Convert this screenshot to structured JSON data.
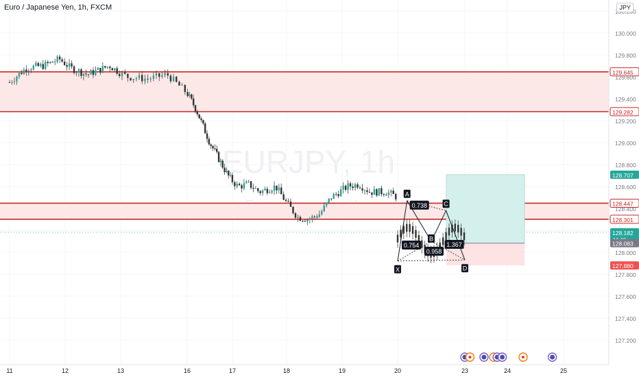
{
  "header": {
    "title": "Euro / Japanese Yen, 1h, FXCM",
    "currency_button": "JPY"
  },
  "watermark": {
    "symbol": "EURJPY, 1h",
    "name": "Euro / Japanese Yen"
  },
  "colors": {
    "up": "#26a69a",
    "down": "#ef5350",
    "candle_body": "#333333",
    "zone_fill": "#fde8e8",
    "zone_line": "#c62828",
    "target_fill": "#d4f0ec",
    "stop_fill": "#fde3e3",
    "pattern_line": "#131722",
    "current_price_line": "#26a69a"
  },
  "chart_data": {
    "type": "candlestick",
    "title": "Euro / Japanese Yen, 1h, FXCM",
    "ylim": [
      127.05,
      130.3
    ],
    "y_ticks": [
      "130.200",
      "130.000",
      "129.800",
      "129.600",
      "129.400",
      "129.200",
      "129.000",
      "128.800",
      "128.600",
      "128.400",
      "128.200",
      "128.000",
      "127.800",
      "127.600",
      "127.400",
      "127.200"
    ],
    "x_ticks": [
      {
        "label": "11",
        "day": 0
      },
      {
        "label": "12",
        "day": 1
      },
      {
        "label": "13",
        "day": 2
      },
      {
        "label": "16",
        "day": 3
      },
      {
        "label": "17",
        "day": 4
      },
      {
        "label": "18",
        "day": 5
      },
      {
        "label": "19",
        "day": 6
      },
      {
        "label": "20",
        "day": 7
      },
      {
        "label": "23",
        "day": 8
      },
      {
        "label": "24",
        "day": 9
      },
      {
        "label": "25",
        "day": 10
      }
    ],
    "series_path": [
      [
        0,
        129.55
      ],
      [
        0.3,
        129.68
      ],
      [
        0.6,
        129.7
      ],
      [
        0.9,
        129.76
      ],
      [
        1.1,
        129.68
      ],
      [
        1.4,
        129.62
      ],
      [
        1.8,
        129.7
      ],
      [
        2.1,
        129.6
      ],
      [
        2.4,
        129.58
      ],
      [
        2.7,
        129.62
      ],
      [
        3.0,
        129.45
      ],
      [
        3.2,
        129.3
      ],
      [
        3.3,
        129.2
      ],
      [
        3.5,
        129.0
      ],
      [
        3.7,
        128.85
      ],
      [
        3.9,
        128.7
      ],
      [
        4.1,
        128.6
      ],
      [
        4.3,
        128.62
      ],
      [
        4.5,
        128.55
      ],
      [
        4.8,
        128.6
      ],
      [
        5.0,
        128.45
      ],
      [
        5.2,
        128.32
      ],
      [
        5.4,
        128.3
      ],
      [
        5.6,
        128.35
      ],
      [
        5.8,
        128.5
      ],
      [
        6.1,
        128.6
      ],
      [
        6.3,
        128.62
      ],
      [
        6.5,
        128.55
      ],
      [
        6.8,
        128.55
      ],
      [
        7.0,
        128.5
      ]
    ],
    "pattern_points": [
      {
        "label": "X",
        "day": 7.0,
        "price": 127.92
      },
      {
        "label": "A",
        "day": 7.14,
        "price": 128.47
      },
      {
        "label": "B",
        "day": 7.5,
        "price": 128.1
      },
      {
        "label": "C",
        "day": 7.72,
        "price": 128.38
      },
      {
        "label": "D",
        "day": 8.0,
        "price": 127.93
      }
    ],
    "pattern_ratios": [
      "0.738",
      "0.754",
      "0.958",
      "1.367"
    ],
    "zones": [
      {
        "top": 129.645,
        "bottom": 129.282,
        "top_label": "129.645",
        "bottom_label": "129.282"
      },
      {
        "top": 128.447,
        "bottom": 128.301,
        "top_label": "128.447",
        "bottom_label": "128.301"
      }
    ],
    "position": {
      "target": 128.707,
      "target_label": "128.707",
      "entry": 128.083,
      "entry_label": "128.083",
      "stop": 127.88,
      "stop_label": "127.880",
      "day_start": 8.0,
      "day_end": 8.92
    },
    "current_price": 128.182,
    "current_price_label": "128.182",
    "countdown": "44:48",
    "events": [
      {
        "day": 8.0,
        "kind": "flag"
      },
      {
        "day": 8.12,
        "kind": "dot"
      },
      {
        "day": 8.45,
        "kind": "flag"
      },
      {
        "day": 8.68,
        "kind": "dot"
      },
      {
        "day": 8.76,
        "kind": "flag"
      },
      {
        "day": 8.88,
        "kind": "flag"
      },
      {
        "day": 9.28,
        "kind": "dot"
      },
      {
        "day": 9.8,
        "kind": "flag"
      }
    ]
  }
}
